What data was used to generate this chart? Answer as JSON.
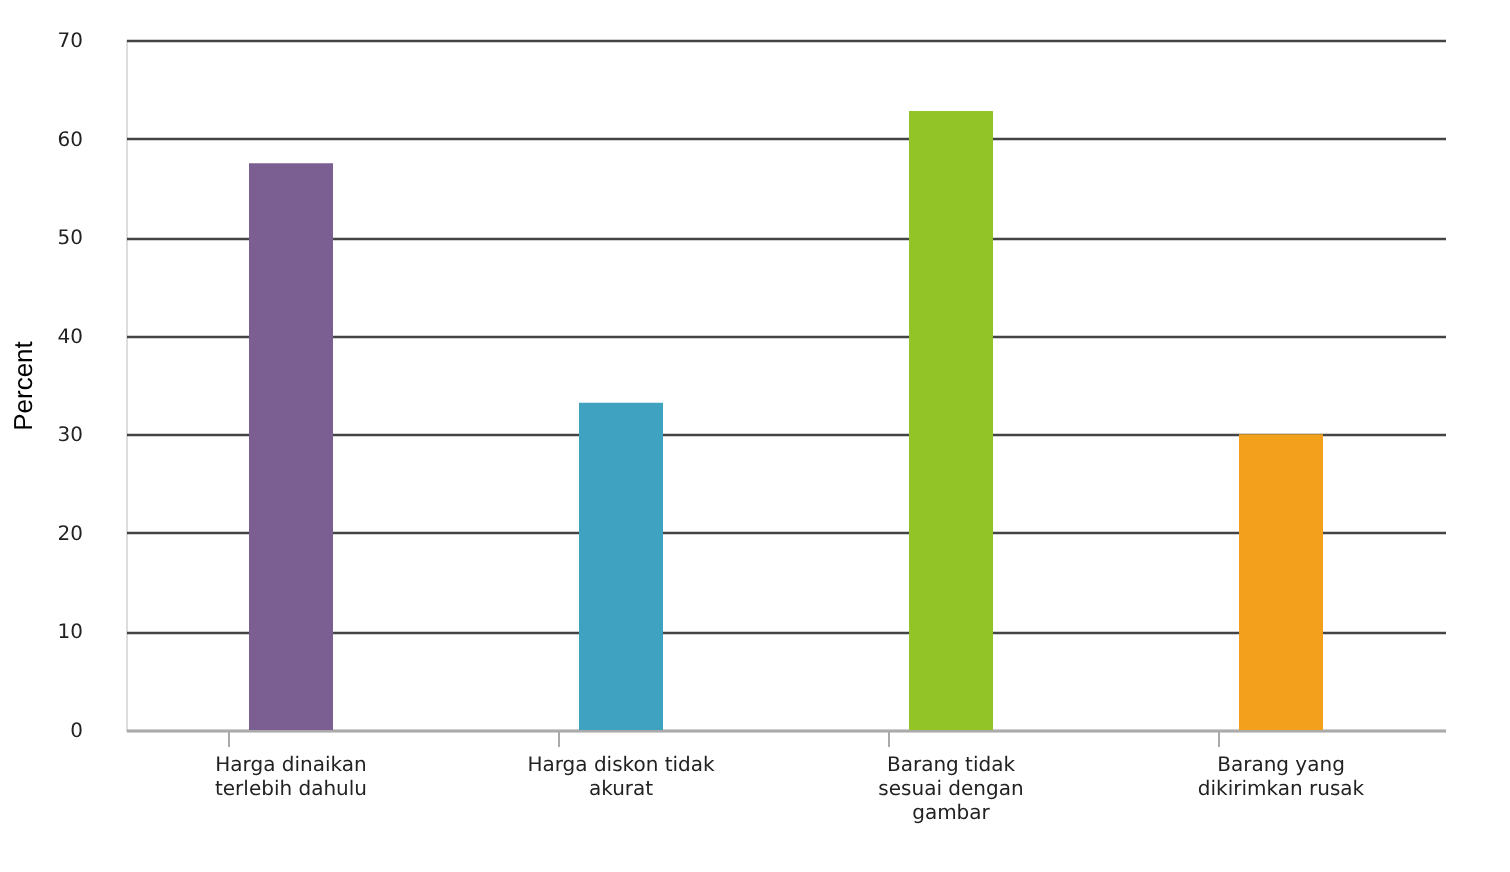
{
  "chart_data": {
    "type": "bar",
    "ylabel": "Percent",
    "categories": [
      "Harga dinaikan terlebih dahulu",
      "Harga diskon tidak akurat",
      "Barang tidak sesuai dengan gambar",
      "Barang yang dikirimkan rusak"
    ],
    "values": [
      57.5,
      33.2,
      62.8,
      30
    ],
    "colors": [
      "#7b5f92",
      "#3fa2c0",
      "#92c428",
      "#f3a11d"
    ],
    "ylim": [
      0,
      70
    ],
    "yticks": [
      0,
      10,
      20,
      30,
      40,
      50,
      60,
      70
    ],
    "grid": "y"
  }
}
